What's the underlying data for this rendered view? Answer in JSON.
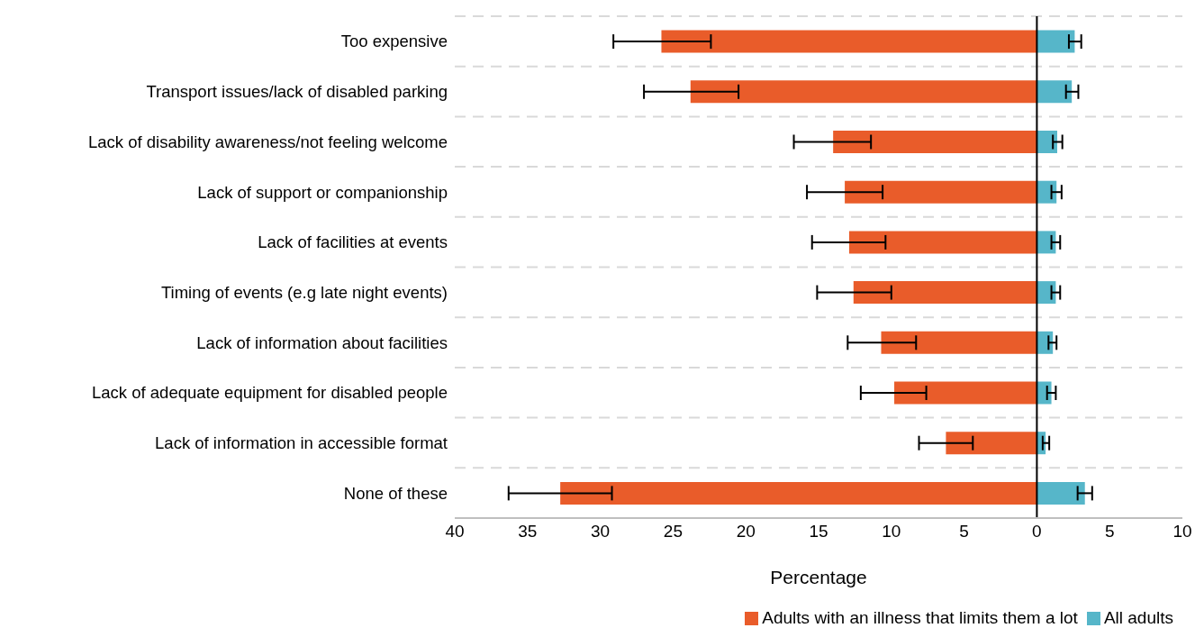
{
  "chart_data": {
    "type": "bar",
    "orientation": "horizontal",
    "stacked": true,
    "xlabel": "Percentage",
    "categories": [
      "Too expensive",
      "Transport issues/lack of disabled parking",
      "Lack of disability awareness/not feeling welcome",
      "Lack of support or companionship",
      "Lack of facilities at events",
      "Timing of events (e.g late night events)",
      "Lack of information about facilities",
      "Lack of adequate equipment for disabled people",
      "Lack of information in accessible format",
      "None of these"
    ],
    "series": [
      {
        "name": "Adults with an illness that limits them a lot",
        "color": "#e95c2a",
        "values": [
          -25.8,
          -23.8,
          -14.0,
          -13.2,
          -12.9,
          -12.6,
          -10.7,
          -9.8,
          -6.25,
          -32.75
        ],
        "errors": [
          [
            -29.1,
            -22.4
          ],
          [
            -27.0,
            -20.5
          ],
          [
            -16.7,
            -11.4
          ],
          [
            -15.8,
            -10.6
          ],
          [
            -15.45,
            -10.4
          ],
          [
            -15.1,
            -10.0
          ],
          [
            -13.0,
            -8.3
          ],
          [
            -12.1,
            -7.6
          ],
          [
            -8.1,
            -4.4
          ],
          [
            -36.3,
            -29.2
          ]
        ]
      },
      {
        "name": "All adults",
        "color": "#56b6c9",
        "values": [
          2.6,
          2.4,
          1.4,
          1.35,
          1.3,
          1.3,
          1.1,
          1.0,
          0.6,
          3.3
        ],
        "errors": [
          [
            2.2,
            3.05
          ],
          [
            2.0,
            2.85
          ],
          [
            1.1,
            1.75
          ],
          [
            1.0,
            1.7
          ],
          [
            1.0,
            1.6
          ],
          [
            1.0,
            1.6
          ],
          [
            0.8,
            1.35
          ],
          [
            0.7,
            1.3
          ],
          [
            0.4,
            0.85
          ],
          [
            2.8,
            3.8
          ]
        ]
      }
    ],
    "xlim": [
      -40,
      10
    ],
    "xticks": [
      {
        "value": -40,
        "label": "40"
      },
      {
        "value": -35,
        "label": "35"
      },
      {
        "value": -30,
        "label": "30"
      },
      {
        "value": -25,
        "label": "25"
      },
      {
        "value": -20,
        "label": "20"
      },
      {
        "value": -15,
        "label": "15"
      },
      {
        "value": -10,
        "label": "10"
      },
      {
        "value": -5,
        "label": "5"
      },
      0,
      5,
      10
    ],
    "ref_lines": [
      {
        "axis": "x",
        "value": 0,
        "color": "#000000"
      }
    ],
    "grid": "y",
    "legend": "bottom right"
  }
}
